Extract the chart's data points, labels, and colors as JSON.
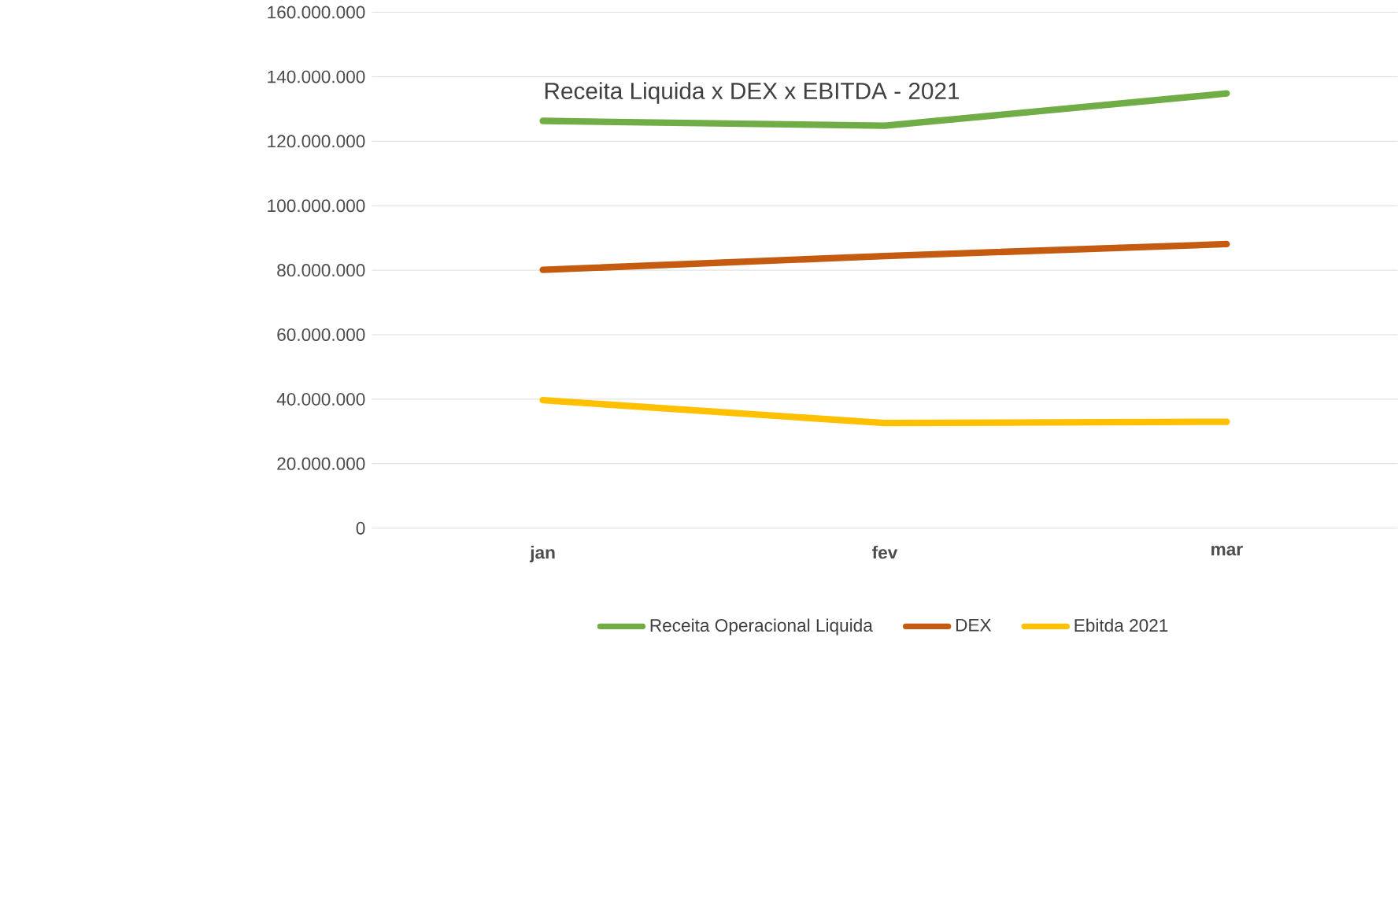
{
  "chart_data": {
    "type": "line",
    "title": "Receita Liquida x DEX x EBITDA - 2021",
    "categories": [
      "jan",
      "fev",
      "mar"
    ],
    "series": [
      {
        "name": "Receita Operacional Liquida",
        "color": "#70ad47",
        "values": [
          126300000,
          124800000,
          134800000
        ]
      },
      {
        "name": "DEX",
        "color": "#c55a11",
        "values": [
          80100000,
          84400000,
          88100000
        ]
      },
      {
        "name": "Ebitda 2021",
        "color": "#ffc000",
        "values": [
          39700000,
          32600000,
          33000000
        ]
      }
    ],
    "ylim": [
      0,
      160000000
    ],
    "yticks": [
      0,
      {
        "value": 20000000,
        "label": "20.000.000"
      },
      {
        "value": 40000000,
        "label": "40.000.000"
      },
      {
        "value": 60000000,
        "label": "60.000.000"
      },
      {
        "value": 80000000,
        "label": "80.000.000"
      },
      {
        "value": 100000000,
        "label": "100.000.000"
      },
      {
        "value": 120000000,
        "label": "120.000.000"
      },
      {
        "value": 140000000,
        "label": "140.000.000"
      },
      {
        "value": 160000000,
        "label": "160.000.000"
      }
    ],
    "grid": "y",
    "legend": "bottom",
    "marker": "none",
    "line_style": "solid"
  }
}
